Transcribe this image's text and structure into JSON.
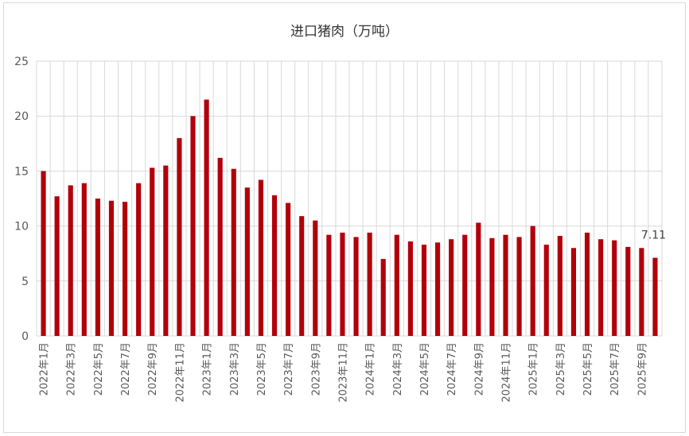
{
  "chart_data": {
    "type": "bar",
    "title": "进口猪肉（万吨）",
    "xlabel": "",
    "ylabel": "",
    "ylim": [
      0,
      25
    ],
    "yticks": [
      0,
      5,
      10,
      15,
      20,
      25
    ],
    "grid": true,
    "legend": "none",
    "bar_color": "#b2000a",
    "categories": [
      "2022年1月",
      "2022年2月",
      "2022年3月",
      "2022年4月",
      "2022年5月",
      "2022年6月",
      "2022年7月",
      "2022年8月",
      "2022年9月",
      "2022年10月",
      "2022年11月",
      "2022年12月",
      "2023年1月",
      "2023年2月",
      "2023年3月",
      "2023年4月",
      "2023年5月",
      "2023年6月",
      "2023年7月",
      "2023年8月",
      "2023年9月",
      "2023年10月",
      "2023年11月",
      "2023年12月",
      "2024年1月",
      "2024年2月",
      "2024年3月",
      "2024年4月",
      "2024年5月",
      "2024年6月",
      "2024年7月",
      "2024年8月",
      "2024年9月",
      "2024年10月",
      "2024年11月",
      "2024年12月",
      "2025年1月",
      "2025年2月",
      "2025年3月",
      "2025年4月",
      "2025年5月",
      "2025年6月",
      "2025年7月",
      "2025年8月",
      "2025年9月",
      "2025年10月"
    ],
    "values": [
      15.0,
      12.7,
      13.7,
      13.9,
      12.5,
      12.3,
      12.2,
      13.9,
      15.3,
      15.5,
      18.0,
      20.0,
      21.5,
      16.2,
      15.2,
      13.5,
      14.2,
      12.8,
      12.1,
      10.9,
      10.5,
      9.2,
      9.4,
      9.0,
      9.4,
      7.0,
      9.2,
      8.6,
      8.3,
      8.5,
      8.8,
      9.2,
      10.3,
      8.9,
      9.2,
      9.0,
      10.0,
      8.3,
      9.1,
      8.0,
      9.4,
      8.8,
      8.7,
      8.1,
      8.0,
      7.11
    ],
    "labeled_tick_every": 2,
    "data_labels": [
      {
        "index": 45,
        "text": "7.11"
      }
    ]
  }
}
